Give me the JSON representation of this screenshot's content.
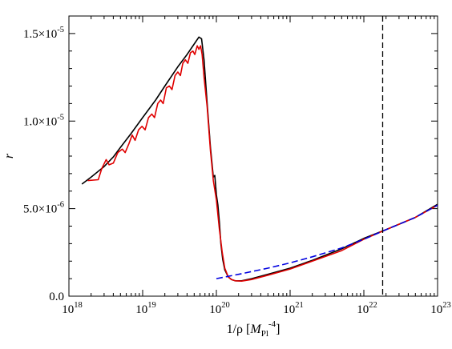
{
  "chart_data": {
    "type": "line",
    "title": "",
    "xlabel": {
      "prefix": "1/ρ [",
      "var": "M",
      "sub": "Pl",
      "sup": "-4",
      "suffix": "]"
    },
    "ylabel": "r",
    "x_scale": "log",
    "xlim": [
      1e+18,
      1e+23
    ],
    "ylim": [
      0,
      1.6e-05
    ],
    "x_ticks": [
      {
        "base": "10",
        "exp": "18",
        "value": 1e+18
      },
      {
        "base": "10",
        "exp": "19",
        "value": 1e+19
      },
      {
        "base": "10",
        "exp": "20",
        "value": 1e+20
      },
      {
        "base": "10",
        "exp": "21",
        "value": 1e+21
      },
      {
        "base": "10",
        "exp": "22",
        "value": 1e+22
      },
      {
        "base": "10",
        "exp": "23",
        "value": 1e+23
      }
    ],
    "y_ticks": [
      {
        "mant": "0.0",
        "exp": "",
        "value": 0
      },
      {
        "mant": "5.0×10",
        "exp": "-6",
        "value": 5e-06
      },
      {
        "mant": "1.0×10",
        "exp": "-5",
        "value": 1e-05
      },
      {
        "mant": "1.5×10",
        "exp": "-5",
        "value": 1.5e-05
      }
    ],
    "grid": false,
    "legend": "none",
    "vline": {
      "x": 1.8e+22,
      "style": "dashed",
      "color": "#000000"
    },
    "series": [
      {
        "color": "#000000",
        "style": "solid",
        "points": [
          [
            1.5e+18,
            6.4e-06
          ],
          [
            2e+18,
            6.8e-06
          ],
          [
            3e+18,
            7.4e-06
          ],
          [
            4e+18,
            7.95e-06
          ],
          [
            5e+18,
            8.5e-06
          ],
          [
            7e+18,
            9.3e-06
          ],
          [
            1e+19,
            1.02e-05
          ],
          [
            1.5e+19,
            1.12e-05
          ],
          [
            2e+19,
            1.2e-05
          ],
          [
            3e+19,
            1.31e-05
          ],
          [
            4e+19,
            1.38e-05
          ],
          [
            5e+19,
            1.44e-05
          ],
          [
            5.8e+19,
            1.48e-05
          ],
          [
            6.3e+19,
            1.47e-05
          ],
          [
            6.8e+19,
            1.35e-05
          ],
          [
            7.5e+19,
            1.1e-05
          ],
          [
            8.3e+19,
            8.5e-06
          ],
          [
            9.1e+19,
            6.8e-06
          ],
          [
            9.5e+19,
            6.9e-06
          ],
          [
            1e+20,
            5.8e-06
          ],
          [
            1.05e+20,
            5.2e-06
          ],
          [
            1.1e+20,
            4.2e-06
          ],
          [
            1.15e+20,
            3e-06
          ],
          [
            1.22e+20,
            2.1e-06
          ],
          [
            1.3e+20,
            1.5e-06
          ],
          [
            1.45e+20,
            1.1e-06
          ],
          [
            1.6e+20,
            9.5e-07
          ],
          [
            1.8e+20,
            8.8e-07
          ],
          [
            2.2e+20,
            8.8e-07
          ],
          [
            3e+20,
            1e-06
          ],
          [
            5e+20,
            1.25e-06
          ],
          [
            1e+21,
            1.6e-06
          ],
          [
            2e+21,
            2.05e-06
          ],
          [
            5e+21,
            2.7e-06
          ],
          [
            1e+22,
            3.3e-06
          ],
          [
            2e+22,
            3.8e-06
          ],
          [
            5e+22,
            4.5e-06
          ],
          [
            1e+23,
            5.25e-06
          ]
        ]
      },
      {
        "color": "#e00000",
        "style": "solid",
        "points": [
          [
            1.8e+18,
            6.6e-06
          ],
          [
            2.5e+18,
            6.65e-06
          ],
          [
            2.8e+18,
            7.3e-06
          ],
          [
            3.2e+18,
            7.8e-06
          ],
          [
            3.5e+18,
            7.5e-06
          ],
          [
            4e+18,
            7.6e-06
          ],
          [
            4.6e+18,
            8.2e-06
          ],
          [
            5.3e+18,
            8.4e-06
          ],
          [
            5.8e+18,
            8.2e-06
          ],
          [
            6.5e+18,
            8.7e-06
          ],
          [
            7.2e+18,
            9.2e-06
          ],
          [
            7.9e+18,
            8.9e-06
          ],
          [
            8.8e+18,
            9.5e-06
          ],
          [
            9.8e+18,
            9.7e-06
          ],
          [
            1.08e+19,
            9.5e-06
          ],
          [
            1.2e+19,
            1.02e-05
          ],
          [
            1.33e+19,
            1.04e-05
          ],
          [
            1.45e+19,
            1.02e-05
          ],
          [
            1.6e+19,
            1.1e-05
          ],
          [
            1.75e+19,
            1.12e-05
          ],
          [
            1.9e+19,
            1.1e-05
          ],
          [
            2.1e+19,
            1.19e-05
          ],
          [
            2.3e+19,
            1.2e-05
          ],
          [
            2.5e+19,
            1.18e-05
          ],
          [
            2.75e+19,
            1.26e-05
          ],
          [
            3e+19,
            1.28e-05
          ],
          [
            3.25e+19,
            1.26e-05
          ],
          [
            3.5e+19,
            1.33e-05
          ],
          [
            3.8e+19,
            1.35e-05
          ],
          [
            4.1e+19,
            1.33e-05
          ],
          [
            4.45e+19,
            1.39e-05
          ],
          [
            4.8e+19,
            1.4e-05
          ],
          [
            5.1e+19,
            1.38e-05
          ],
          [
            5.5e+19,
            1.43e-05
          ],
          [
            5.8e+19,
            1.41e-05
          ],
          [
            6.1e+19,
            1.43e-05
          ],
          [
            6.4e+19,
            1.38e-05
          ],
          [
            6.8e+19,
            1.25e-05
          ],
          [
            7.5e+19,
            1.08e-05
          ],
          [
            8.3e+19,
            8.3e-06
          ],
          [
            9.1e+19,
            6.6e-06
          ],
          [
            1e+20,
            5.5e-06
          ],
          [
            1.1e+20,
            3.8e-06
          ],
          [
            1.2e+20,
            2.5e-06
          ],
          [
            1.3e+20,
            1.6e-06
          ],
          [
            1.45e+20,
            1.1e-06
          ],
          [
            1.6e+20,
            9.5e-07
          ],
          [
            1.8e+20,
            8.8e-07
          ],
          [
            2.2e+20,
            8.6e-07
          ],
          [
            3e+20,
            9.5e-07
          ],
          [
            5e+20,
            1.2e-06
          ],
          [
            1e+21,
            1.55e-06
          ],
          [
            2e+21,
            2e-06
          ],
          [
            5e+21,
            2.6e-06
          ],
          [
            1e+22,
            3.25e-06
          ],
          [
            2e+22,
            3.8e-06
          ],
          [
            5e+22,
            4.5e-06
          ],
          [
            1e+23,
            5.2e-06
          ]
        ]
      },
      {
        "color": "#0000e0",
        "style": "dashed",
        "points": [
          [
            1e+20,
            1e-06
          ],
          [
            2e+20,
            1.25e-06
          ],
          [
            5e+20,
            1.6e-06
          ],
          [
            1e+21,
            1.9e-06
          ],
          [
            2e+21,
            2.25e-06
          ],
          [
            5e+21,
            2.75e-06
          ],
          [
            1e+22,
            3.25e-06
          ],
          [
            2e+22,
            3.8e-06
          ],
          [
            5e+22,
            4.5e-06
          ],
          [
            1e+23,
            5.2e-06
          ]
        ]
      }
    ]
  }
}
